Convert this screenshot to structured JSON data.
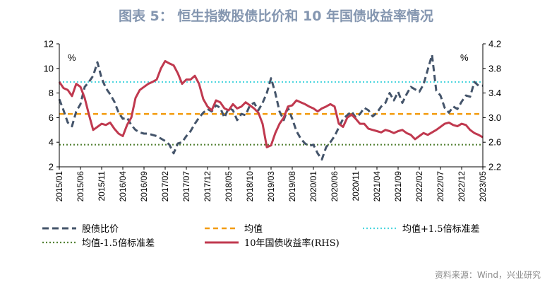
{
  "title": "图表 5： 恒生指数股债比价和 10 年国债收益率情况",
  "source": "资料来源：Wind，兴业研究",
  "colors": {
    "ratio": "#44546a",
    "mean": "#f39c12",
    "upper": "#4fd6df",
    "lower": "#548235",
    "yield": "#c0394f"
  },
  "chart_data": {
    "type": "line",
    "left_unit": "%",
    "right_unit": "%",
    "left_axis": {
      "ylim": [
        2,
        12
      ],
      "ticks": [
        "2",
        "4",
        "6",
        "8",
        "10",
        "12"
      ]
    },
    "right_axis": {
      "ylim": [
        2.2,
        4.2
      ],
      "ticks": [
        "2.2",
        "2.6",
        "3.0",
        "3.4",
        "3.8",
        "4.2"
      ]
    },
    "x_ticks": [
      "2015/01",
      "2015/06",
      "2015/11",
      "2016/04",
      "2016/09",
      "2017/02",
      "2017/07",
      "2017/12",
      "2018/05",
      "2018/10",
      "2019/03",
      "2019/08",
      "2020/01",
      "2020/06",
      "2020/11",
      "2021/04",
      "2021/09",
      "2022/02",
      "2022/07",
      "2022/12",
      "2023/05"
    ],
    "legend": [
      "股债比价",
      "均值",
      "均值+1.5倍标准差",
      "均值-1.5倍标准差",
      "10年国债收益率(RHS)"
    ],
    "reference_lines": {
      "mean": 6.3,
      "upper": 8.9,
      "lower": 3.8
    },
    "series": [
      {
        "name": "股债比价",
        "axis": "left",
        "style": "dashed",
        "t": [
          0,
          1,
          2,
          3,
          4,
          5,
          6,
          7,
          8,
          9,
          10,
          11,
          12,
          13,
          14,
          15,
          16,
          17,
          18,
          19,
          20,
          21,
          22,
          23,
          24,
          25,
          26,
          27,
          28,
          29,
          30,
          31,
          32,
          33,
          34,
          35,
          36,
          37,
          38,
          39,
          40,
          41,
          42,
          43,
          44,
          45,
          46,
          47,
          48,
          49,
          50,
          51,
          52,
          53,
          54,
          55,
          56,
          57,
          58,
          59,
          60,
          61,
          62,
          63,
          64,
          65,
          66,
          67,
          68,
          69,
          70,
          71,
          72,
          73,
          74,
          75,
          76,
          77,
          78,
          79,
          80,
          81,
          82,
          83,
          84,
          85,
          86,
          87,
          88,
          89,
          90,
          91,
          92,
          93,
          94,
          95,
          96,
          97,
          98,
          99,
          100
        ],
        "values": [
          7.5,
          6.6,
          5.6,
          5.3,
          6.5,
          7.1,
          8.5,
          8.9,
          9.4,
          10.5,
          9.2,
          8.4,
          7.9,
          7.3,
          6.4,
          5.9,
          6.0,
          5.4,
          5.0,
          4.8,
          4.7,
          4.7,
          4.6,
          4.5,
          4.3,
          4.1,
          3.8,
          3.1,
          3.9,
          4.0,
          4.5,
          4.9,
          5.5,
          6.0,
          6.4,
          6.7,
          6.5,
          7.0,
          6.8,
          6.0,
          6.8,
          6.6,
          5.8,
          6.3,
          6.2,
          7.0,
          7.2,
          6.6,
          7.2,
          8.0,
          9.2,
          8.0,
          6.5,
          5.8,
          6.8,
          5.9,
          4.9,
          4.3,
          3.9,
          3.7,
          3.8,
          3.1,
          2.6,
          3.6,
          4.0,
          4.5,
          5.2,
          5.9,
          6.2,
          6.5,
          6.0,
          6.3,
          6.8,
          6.6,
          6.1,
          6.4,
          6.9,
          7.2,
          8.0,
          7.4,
          8.1,
          7.2,
          7.9,
          8.5,
          8.3,
          8.1,
          8.7,
          9.9,
          11.1,
          8.2,
          7.8,
          6.8,
          6.4,
          6.9,
          6.7,
          7.3,
          7.8,
          7.7,
          8.9,
          8.6,
          8.6
        ]
      },
      {
        "name": "10年国债收益率(RHS)",
        "axis": "right",
        "style": "solid",
        "t": [
          0,
          1,
          2,
          3,
          4,
          5,
          6,
          7,
          8,
          9,
          10,
          11,
          12,
          13,
          14,
          15,
          16,
          17,
          18,
          19,
          20,
          21,
          22,
          23,
          24,
          25,
          26,
          27,
          28,
          29,
          30,
          31,
          32,
          33,
          34,
          35,
          36,
          37,
          38,
          39,
          40,
          41,
          42,
          43,
          44,
          45,
          46,
          47,
          48,
          49,
          50,
          51,
          52,
          53,
          54,
          55,
          56,
          57,
          58,
          59,
          60,
          61,
          62,
          63,
          64,
          65,
          66,
          67,
          68,
          69,
          70,
          71,
          72,
          73,
          74,
          75,
          76,
          77,
          78,
          79,
          80,
          81,
          82,
          83,
          84,
          85,
          86,
          87,
          88,
          89,
          90,
          91,
          92,
          93,
          94,
          95,
          96,
          97,
          98,
          99,
          100
        ],
        "values": [
          3.58,
          3.48,
          3.45,
          3.35,
          3.55,
          3.5,
          3.32,
          3.05,
          2.8,
          2.85,
          2.9,
          2.88,
          2.92,
          2.82,
          2.74,
          2.7,
          2.88,
          3.0,
          3.32,
          3.45,
          3.5,
          3.55,
          3.58,
          3.62,
          3.8,
          3.92,
          3.88,
          3.85,
          3.72,
          3.55,
          3.62,
          3.62,
          3.68,
          3.55,
          3.3,
          3.18,
          3.12,
          3.28,
          3.25,
          3.15,
          3.12,
          3.22,
          3.15,
          3.18,
          3.25,
          3.2,
          3.15,
          3.08,
          2.9,
          2.52,
          2.55,
          2.75,
          2.9,
          3.0,
          3.18,
          3.2,
          3.28,
          3.25,
          3.22,
          3.18,
          3.15,
          3.1,
          3.15,
          3.18,
          3.22,
          3.18,
          2.9,
          2.85,
          3.0,
          3.05,
          2.98,
          2.9,
          2.9,
          2.82,
          2.8,
          2.78,
          2.76,
          2.8,
          2.78,
          2.75,
          2.78,
          2.8,
          2.75,
          2.72,
          2.65,
          2.7,
          2.75,
          2.72,
          2.76,
          2.8,
          2.85,
          2.9,
          2.92,
          2.88,
          2.86,
          2.9,
          2.88,
          2.8,
          2.75,
          2.72,
          2.68
        ]
      }
    ]
  }
}
